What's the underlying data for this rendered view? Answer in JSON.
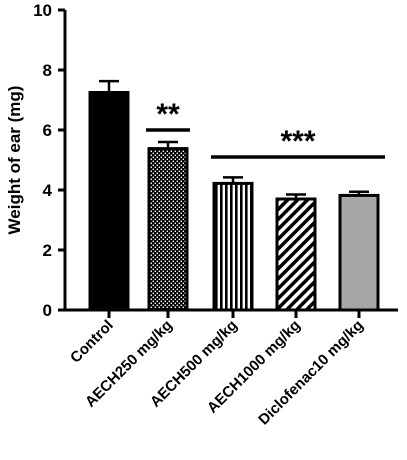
{
  "chart_data": {
    "type": "bar",
    "title": "",
    "xlabel": "",
    "ylabel": "Weight of ear (mg)",
    "ylim": [
      0,
      10
    ],
    "yticks": [
      "0",
      "2",
      "4",
      "6",
      "8",
      "10"
    ],
    "grid": false,
    "categories": [
      "Control",
      "AECH250 mg/kg",
      "AECH500 mg/kg",
      "AECH1000 mg/kg",
      "Diclofenac10 mg/kg"
    ],
    "values": [
      7.25,
      5.38,
      4.22,
      3.7,
      3.82
    ],
    "errors": [
      0.38,
      0.22,
      0.2,
      0.15,
      0.12
    ],
    "fills": [
      "solid-black",
      "dots",
      "vertical-stripes",
      "diagonal-stripes",
      "solid-gray"
    ],
    "colors": {
      "black": "#000000",
      "gray": "#a6a6a6",
      "white": "#ffffff"
    },
    "annotations": [
      {
        "text": "**",
        "categories": [
          "AECH250 mg/kg"
        ],
        "y": 6.0
      },
      {
        "text": "***",
        "categories": [
          "AECH500 mg/kg",
          "Diclofenac10 mg/kg"
        ],
        "y": 5.1
      }
    ]
  }
}
